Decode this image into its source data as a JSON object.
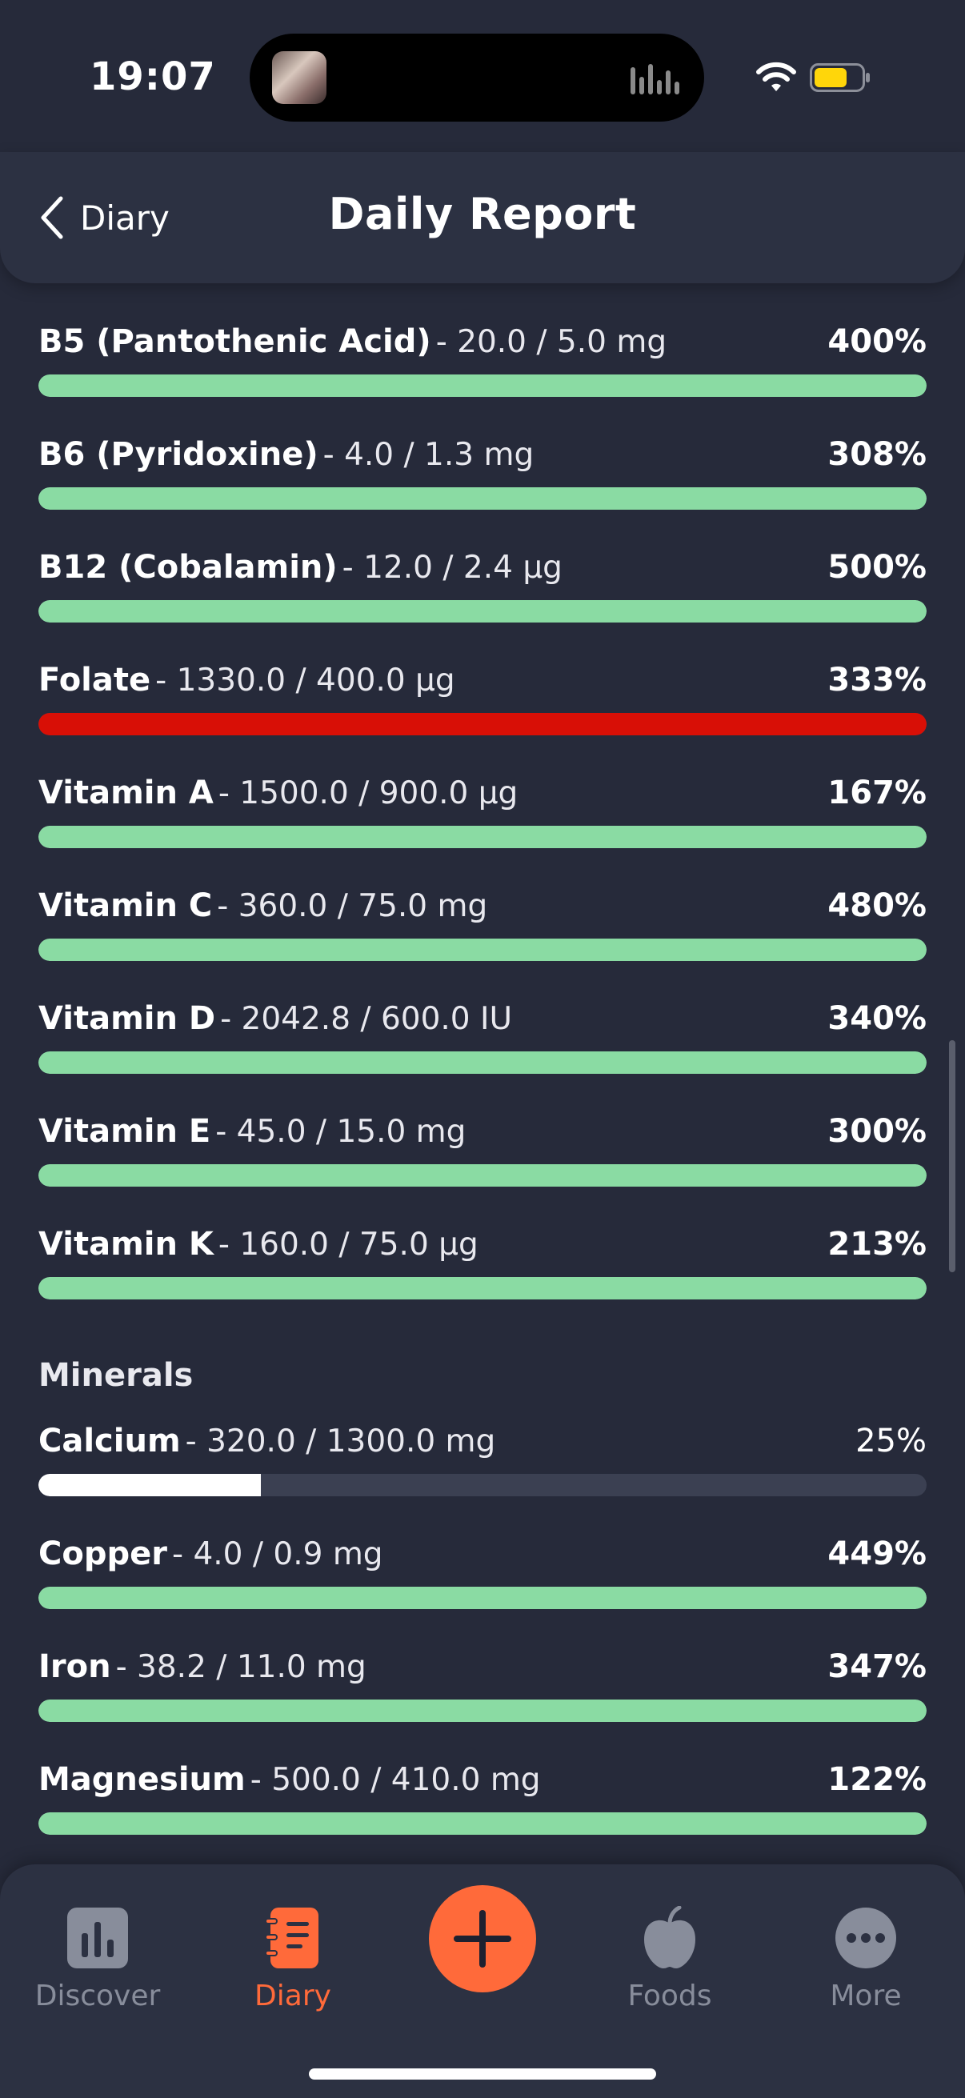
{
  "status": {
    "time": "19:07"
  },
  "header": {
    "back_label": "Diary",
    "title": "Daily Report"
  },
  "colors": {
    "good": "#8adba3",
    "over_limit": "#d80f06",
    "low": "#ffffff",
    "track": "#3b4052",
    "accent": "#ff6a3a"
  },
  "vitamins": [
    {
      "name": "B5 (Pantothenic Acid)",
      "amount": "- 20.0 / 5.0 mg",
      "percent": "400%",
      "fill": 1.0,
      "status": "good"
    },
    {
      "name": "B6 (Pyridoxine)",
      "amount": "- 4.0 / 1.3 mg",
      "percent": "308%",
      "fill": 1.0,
      "status": "good"
    },
    {
      "name": "B12 (Cobalamin)",
      "amount": "- 12.0 / 2.4 µg",
      "percent": "500%",
      "fill": 1.0,
      "status": "good"
    },
    {
      "name": "Folate",
      "amount": "- 1330.0 / 400.0 µg",
      "percent": "333%",
      "fill": 1.0,
      "status": "over_limit"
    },
    {
      "name": "Vitamin A",
      "amount": "- 1500.0 / 900.0 µg",
      "percent": "167%",
      "fill": 1.0,
      "status": "good"
    },
    {
      "name": "Vitamin C",
      "amount": "- 360.0 / 75.0 mg",
      "percent": "480%",
      "fill": 1.0,
      "status": "good"
    },
    {
      "name": "Vitamin D",
      "amount": "- 2042.8 / 600.0 IU",
      "percent": "340%",
      "fill": 1.0,
      "status": "good"
    },
    {
      "name": "Vitamin E",
      "amount": "- 45.0 / 15.0 mg",
      "percent": "300%",
      "fill": 1.0,
      "status": "good"
    },
    {
      "name": "Vitamin K",
      "amount": "- 160.0 / 75.0 µg",
      "percent": "213%",
      "fill": 1.0,
      "status": "good"
    }
  ],
  "minerals_heading": "Minerals",
  "minerals": [
    {
      "name": "Calcium",
      "amount": "- 320.0 / 1300.0 mg",
      "percent": "25%",
      "fill": 0.25,
      "status": "low"
    },
    {
      "name": "Copper",
      "amount": "- 4.0 / 0.9 mg",
      "percent": "449%",
      "fill": 1.0,
      "status": "good"
    },
    {
      "name": "Iron",
      "amount": "- 38.2 / 11.0 mg",
      "percent": "347%",
      "fill": 1.0,
      "status": "good"
    },
    {
      "name": "Magnesium",
      "amount": "- 500.0 / 410.0 mg",
      "percent": "122%",
      "fill": 1.0,
      "status": "good"
    }
  ],
  "tabs": [
    {
      "label": "Discover",
      "icon": "chart-icon"
    },
    {
      "label": "Diary",
      "icon": "notebook-icon"
    },
    {
      "label": "Foods",
      "icon": "apple-icon"
    },
    {
      "label": "More",
      "icon": "more-icon"
    }
  ]
}
